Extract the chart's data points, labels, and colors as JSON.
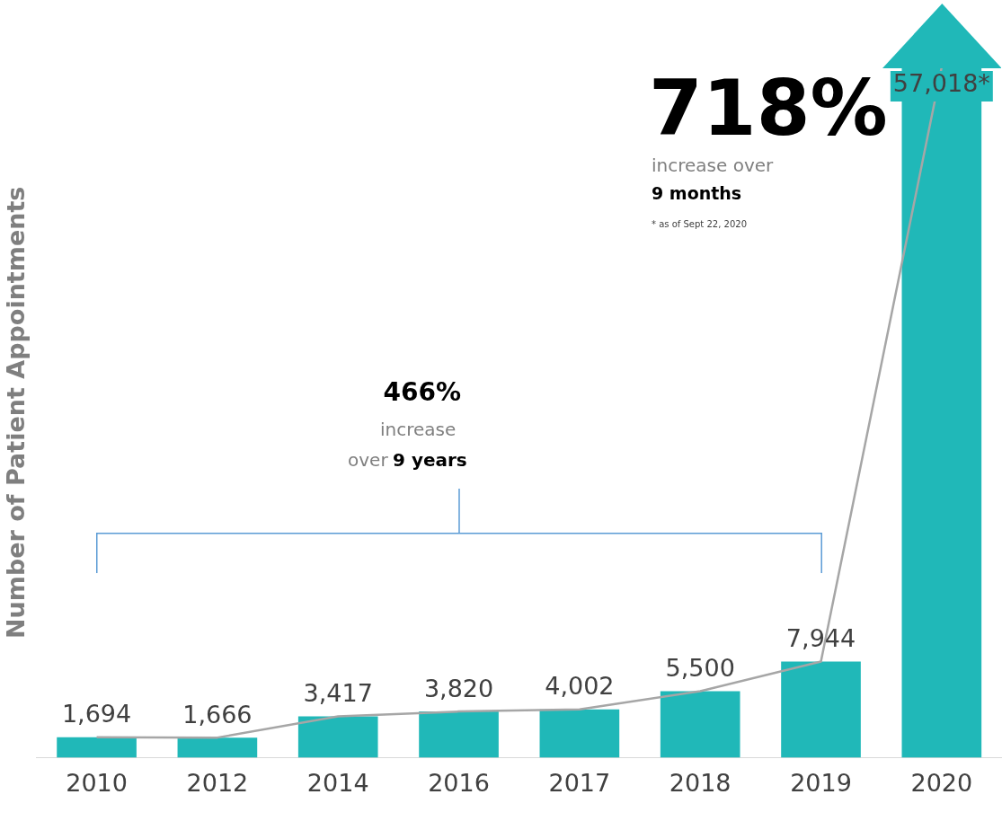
{
  "chart_data": {
    "type": "bar",
    "ylabel": "Number of Patient Appointments",
    "tick_labels": "x",
    "categories": [
      "2010",
      "2012",
      "2014",
      "2016",
      "2017",
      "2018",
      "2019",
      "2020"
    ],
    "series": [
      {
        "type": "bar",
        "color": "#20b8b8",
        "values": [
          1694,
          1666,
          3417,
          3820,
          4002,
          5500,
          7944,
          57018
        ],
        "value_labels": [
          "1,694",
          "1,666",
          "3,417",
          "3,820",
          "4,002",
          "5,500",
          "7,944",
          "57,018*"
        ]
      },
      {
        "type": "line",
        "color": "#a6a6a6",
        "marker": "none",
        "values": [
          1694,
          1666,
          3417,
          3820,
          4002,
          5500,
          7944,
          57018
        ]
      }
    ],
    "annotations": [
      "718%",
      "increase over",
      "9 months",
      "* as of  Sept 22, 2020",
      "466%",
      "increase",
      "over",
      "9 years"
    ]
  }
}
